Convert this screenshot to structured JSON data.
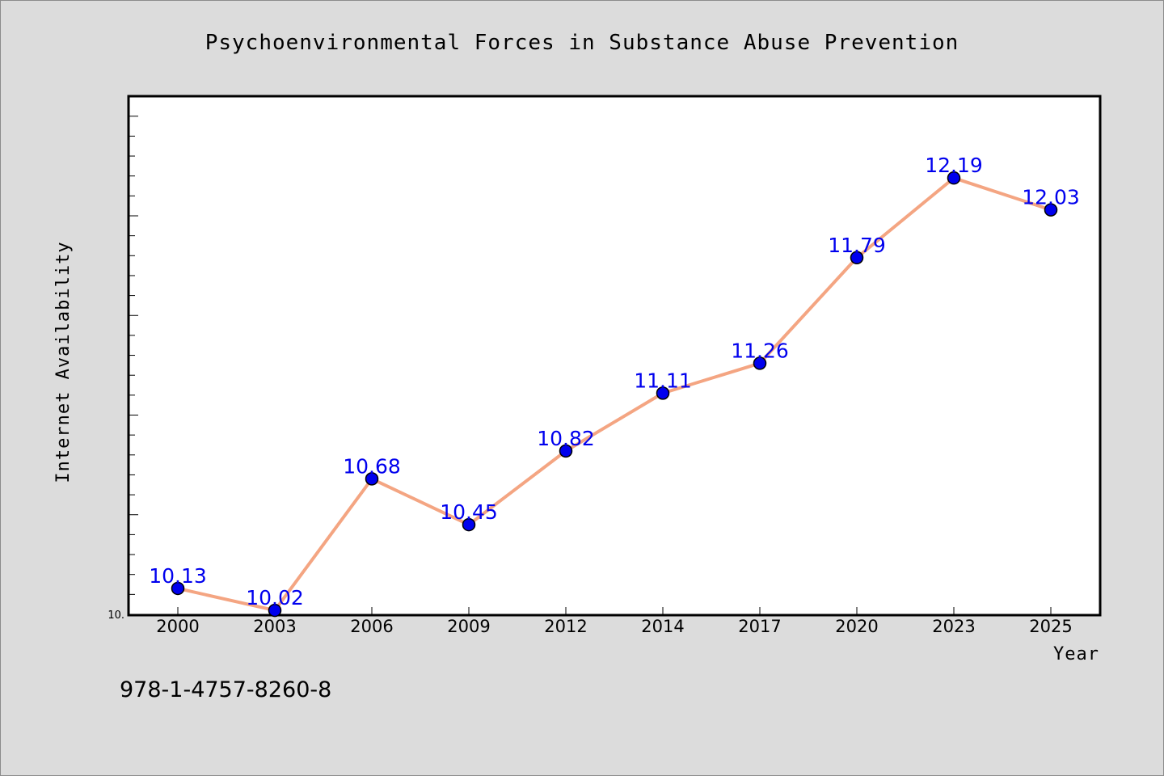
{
  "chart_data": {
    "type": "line",
    "title": "Psychoenvironmental Forces in Substance Abuse Prevention",
    "xlabel": "Year",
    "ylabel": "Internet Availability",
    "categories": [
      "2000",
      "2003",
      "2006",
      "2009",
      "2012",
      "2014",
      "2017",
      "2020",
      "2023",
      "2025"
    ],
    "series": [
      {
        "values": [
          10.13,
          10.02,
          10.68,
          10.45,
          10.82,
          11.11,
          11.26,
          11.79,
          12.19,
          12.03
        ],
        "labels": [
          "10.13",
          "10.02",
          "10.68",
          "10.45",
          "10.82",
          "11.11",
          "11.26",
          "11.79",
          "12.19",
          "12.03"
        ]
      }
    ],
    "ylim": [
      10.0,
      12.6
    ],
    "y_tick_label": "10.",
    "grid": false,
    "legend": "none",
    "colors": {
      "line": "#f4a582",
      "marker": "#0000ee",
      "data_label": "#0000ee",
      "background": "#dcdcdc",
      "plot_background": "#ffffff"
    }
  },
  "footer": {
    "isbn": "978-1-4757-8260-8"
  }
}
